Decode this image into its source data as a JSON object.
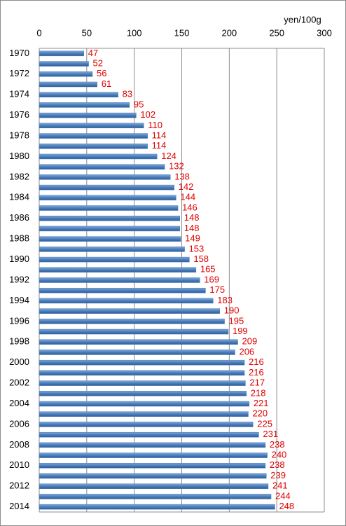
{
  "chart_data": {
    "type": "barh",
    "x_label": "yen/100g",
    "categories": [
      "1970",
      null,
      "1972",
      null,
      "1974",
      null,
      "1976",
      null,
      "1978",
      null,
      "1980",
      null,
      "1982",
      null,
      "1984",
      null,
      "1986",
      null,
      "1988",
      null,
      "1990",
      null,
      "1992",
      null,
      "1994",
      null,
      "1996",
      null,
      "1998",
      null,
      "2000",
      null,
      "2002",
      null,
      "2004",
      null,
      "2006",
      null,
      "2008",
      null,
      "2010",
      null,
      "2012",
      null,
      "2014"
    ],
    "values": [
      47,
      52,
      56,
      61,
      83,
      95,
      102,
      110,
      114,
      114,
      124,
      132,
      138,
      142,
      144,
      146,
      148,
      148,
      149,
      153,
      158,
      165,
      169,
      175,
      183,
      190,
      195,
      199,
      209,
      206,
      216,
      216,
      217,
      218,
      221,
      220,
      225,
      231,
      238,
      240,
      238,
      239,
      241,
      244,
      248
    ],
    "color": "#4a7ebb",
    "label_color": "#e00000",
    "xlim": [
      0,
      300
    ],
    "xticks": [
      0,
      50,
      100,
      150,
      200,
      250,
      300
    ],
    "grid": true
  }
}
